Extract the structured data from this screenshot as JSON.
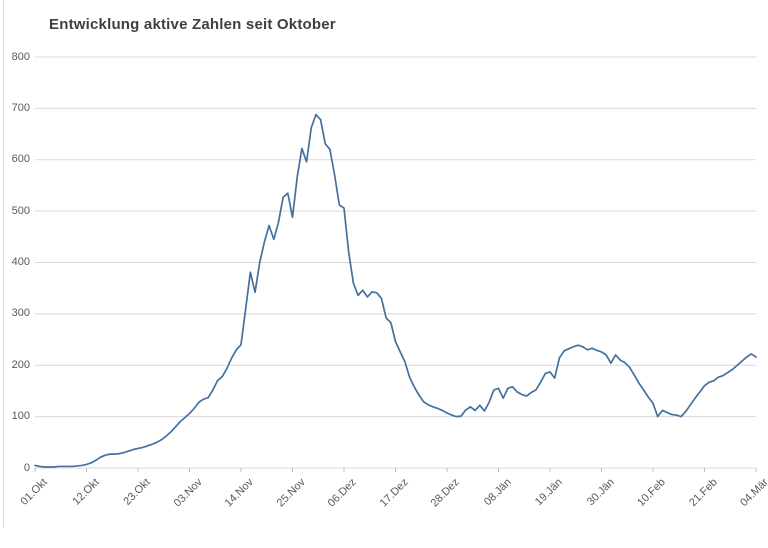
{
  "title": "Entwicklung aktive Zahlen seit Oktober",
  "chart_data": {
    "type": "line",
    "title": "Entwicklung aktive Zahlen seit Oktober",
    "xlabel": "",
    "ylabel": "",
    "ylim": [
      0,
      800
    ],
    "y_ticks": [
      0,
      100,
      200,
      300,
      400,
      500,
      600,
      700,
      800
    ],
    "grid": true,
    "legend": "none",
    "x_tick_labels": [
      "01.Okt",
      "12.Okt",
      "23.Okt",
      "03.Nov",
      "14.Nov",
      "25.Nov",
      "06.Dez",
      "17.Dez",
      "28.Dez",
      "08.Jän",
      "19.Jän",
      "30.Jän",
      "10.Feb",
      "21.Feb",
      "04.Mär"
    ],
    "x_tick_interval_days": 11,
    "x_is_daily_series_from": "01.Okt",
    "values": [
      5,
      3,
      2,
      2,
      2,
      3,
      3,
      3,
      3,
      4,
      5,
      7,
      10,
      15,
      21,
      25,
      27,
      27,
      28,
      30,
      33,
      36,
      38,
      40,
      43,
      46,
      50,
      55,
      62,
      70,
      80,
      90,
      98,
      106,
      116,
      128,
      134,
      137,
      152,
      170,
      178,
      194,
      214,
      230,
      240,
      310,
      381,
      342,
      400,
      440,
      472,
      445,
      478,
      527,
      535,
      488,
      566,
      622,
      596,
      662,
      688,
      678,
      631,
      620,
      570,
      512,
      506,
      420,
      360,
      336,
      346,
      333,
      343,
      341,
      330,
      292,
      283,
      246,
      226,
      207,
      177,
      158,
      142,
      129,
      123,
      119,
      116,
      112,
      107,
      103,
      100,
      101,
      113,
      119,
      112,
      122,
      111,
      128,
      152,
      155,
      136,
      155,
      158,
      148,
      143,
      140,
      147,
      152,
      167,
      184,
      187,
      175,
      214,
      228,
      232,
      236,
      239,
      236,
      230,
      233,
      229,
      226,
      220,
      204,
      220,
      210,
      205,
      196,
      181,
      165,
      152,
      138,
      126,
      100,
      112,
      108,
      104,
      103,
      100,
      110,
      123,
      136,
      148,
      160,
      167,
      170,
      177,
      180,
      186,
      192,
      200,
      208,
      216,
      222,
      216
    ],
    "colors": {
      "line": "#44709E",
      "grid": "#D9D9D9",
      "axis_line": "#D9D9D9",
      "tick": "#BFBFBF",
      "axis_label": "#595959",
      "title": "#3F3F3F",
      "background": "#FFFFFF"
    }
  }
}
